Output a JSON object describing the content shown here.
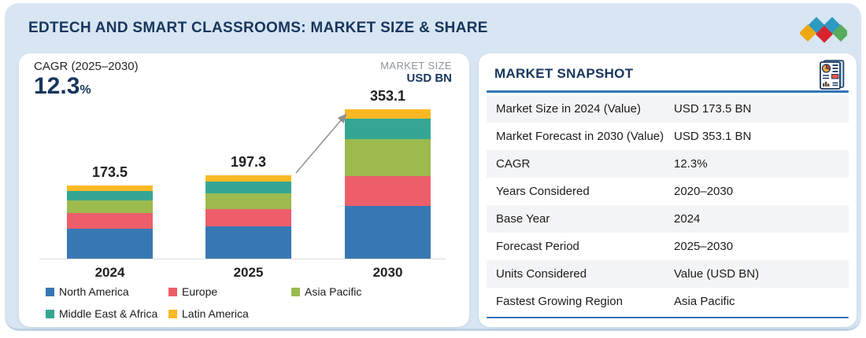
{
  "header": {
    "title": "EDTECH AND SMART CLASSROOMS: MARKET SIZE & SHARE"
  },
  "logo": {
    "diamond_colors": {
      "yellow": "#efa713",
      "blue": "#2e9ac2",
      "red": "#d9232e",
      "green": "#58ad5c"
    }
  },
  "chart_panel": {
    "cagr_label": "CAGR (2025–2030)",
    "cagr_value": "12.3",
    "cagr_unit": "%",
    "market_size_label": "MARKET SIZE",
    "market_size_unit": "USD BN"
  },
  "chart_data": {
    "type": "bar",
    "stacked": true,
    "title": "EdTech and Smart Classrooms Market Size",
    "ylabel": "USD BN",
    "grid": false,
    "legend_position": "bottom",
    "categories": [
      "2024",
      "2025",
      "2030"
    ],
    "totals": [
      173.5,
      197.3,
      353.1
    ],
    "series": [
      {
        "name": "North America",
        "color": "#3778b4",
        "values": [
          70.5,
          76.0,
          124.0
        ]
      },
      {
        "name": "Europe",
        "color": "#ec5f6a",
        "values": [
          37.0,
          41.0,
          71.0
        ]
      },
      {
        "name": "Asia Pacific",
        "color": "#9cba4e",
        "values": [
          30.0,
          38.0,
          87.0
        ]
      },
      {
        "name": "Middle East & Africa",
        "color": "#35a693",
        "values": [
          22.5,
          27.0,
          48.0
        ]
      },
      {
        "name": "Latin America",
        "color": "#fdb924",
        "values": [
          13.5,
          15.3,
          23.1
        ]
      }
    ],
    "annotation": {
      "type": "arrow",
      "from": "2025 bar top",
      "to": "2030 bar top"
    }
  },
  "snapshot": {
    "title": "MARKET SNAPSHOT",
    "icon": "report-icon",
    "rows": [
      {
        "label": "Market Size in 2024 (Value)",
        "value": "USD 173.5 BN"
      },
      {
        "label": "Market Forecast in 2030 (Value)",
        "value": "USD 353.1 BN"
      },
      {
        "label": "CAGR",
        "value": "12.3%"
      },
      {
        "label": "Years Considered",
        "value": "2020–2030"
      },
      {
        "label": "Base Year",
        "value": "2024"
      },
      {
        "label": "Forecast Period",
        "value": "2025–2030"
      },
      {
        "label": "Units Considered",
        "value": "Value (USD BN)"
      },
      {
        "label": "Fastest Growing Region",
        "value": "Asia Pacific"
      }
    ]
  },
  "colors": {
    "canvas_bg": "#d8e5f2",
    "navy": "#17365d",
    "divider_blue": "#2e74b5",
    "row_shade": "#f3f4f5",
    "axis_gray": "#d9d9d9",
    "arrow_gray": "#8f8f8f"
  }
}
